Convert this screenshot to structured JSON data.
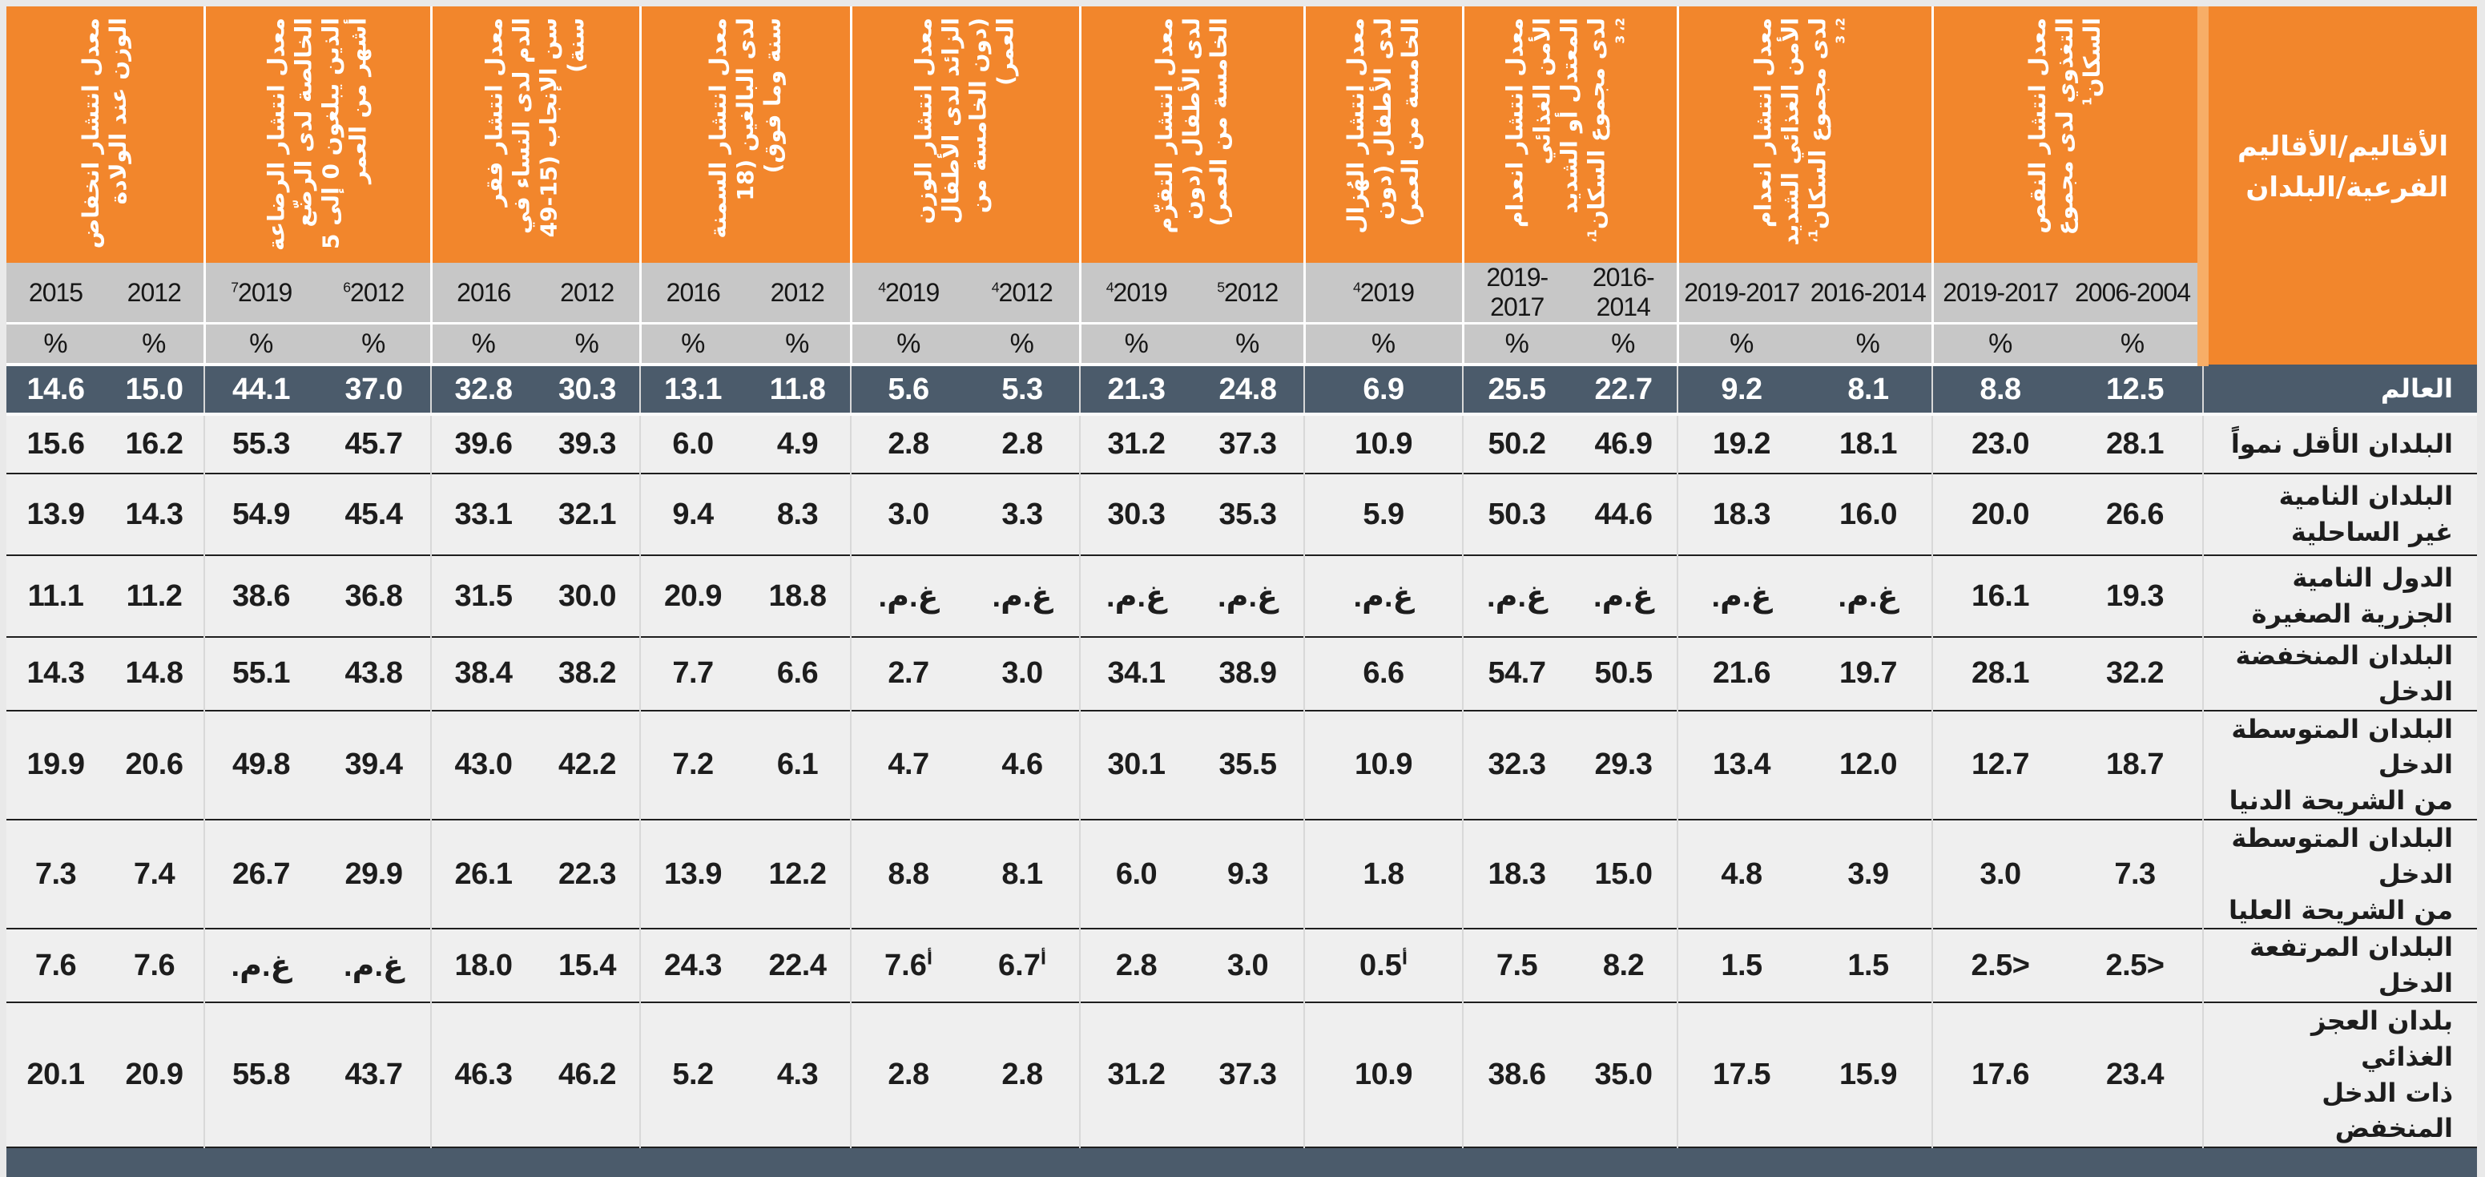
{
  "table": {
    "corner_header": "الأقاليم/الأقاليم\nالفرعية/البلدان",
    "unit": "%",
    "na": "‏غ.م.‏",
    "colors": {
      "header_orange": "#F2862C",
      "corner_gap_orange": "#F7AE67",
      "year_band_gray": "#C7C7C7",
      "world_row_dark": "#4B5B6B",
      "row_background": "#EFEFEF",
      "row_rule": "#1E1E1E"
    },
    "groups": [
      {
        "title": "معدل انتشار انخفاض الوزن عند الولادة",
        "years": [
          "2015",
          "2012"
        ]
      },
      {
        "title": "معدل انتشار الرضاعة الخالصة لدى الرضّع الذين يبلغون 0 إلى 5 أشهر من العمر",
        "years": [
          "⟦7⟧2019",
          "⟦6⟧2012"
        ]
      },
      {
        "title": "معدل انتشار فقر الدم لدى النساء في سن الإنجاب (15-49 سنة)",
        "years": [
          "2016",
          "2012"
        ]
      },
      {
        "title": "معدل انتشار السمنة لدى البالغين (18 سنة وما فوق)",
        "years": [
          "2016",
          "2012"
        ]
      },
      {
        "title": "معدل انتشار الوزن الزائد لدى الأطفال (دون الخامسة من العمر)",
        "years": [
          "⟦4⟧2019",
          "⟦4⟧2012"
        ]
      },
      {
        "title": "معدل انتشار التقزّم لدى الأطفال (دون الخامسة من العمر)",
        "years": [
          "⟦4⟧2019",
          "⟦5⟧2012"
        ]
      },
      {
        "title": "معدل انتشار الهُزال لدى الأطفال (دون الخامسة من العمر)",
        "years": [
          "⟦4⟧2019"
        ]
      },
      {
        "title": "معدل انتشار انعدام الأمن الغذائي المعتدل أو الشديد لدى مجموع السكان⟦1، 2، 3⟧",
        "years": [
          "2019-2017",
          "2016-2014"
        ]
      },
      {
        "title": "معدل انتشار انعدام الأمن الغذائي الشديد لدى مجموع السكان⟦1، 2، 3⟧",
        "years": [
          "2019-2017",
          "2016-2014"
        ]
      },
      {
        "title": "معدل انتشار النقص التغذوي لدى مجموع السكان⟦1⟧",
        "years": [
          "2019-2017",
          "2006-2004"
        ]
      }
    ],
    "rows": [
      {
        "label": "العالم",
        "values": [
          "14.6",
          "15.0",
          "44.1",
          "37.0",
          "32.8",
          "30.3",
          "13.1",
          "11.8",
          "5.6",
          "5.3",
          "21.3",
          "24.8",
          "6.9",
          "25.5",
          "22.7",
          "9.2",
          "8.1",
          "8.8",
          "12.5"
        ]
      },
      {
        "label": "البلدان الأقل نمواً",
        "values": [
          "15.6",
          "16.2",
          "55.3",
          "45.7",
          "39.6",
          "39.3",
          "6.0",
          "4.9",
          "2.8",
          "2.8",
          "31.2",
          "37.3",
          "10.9",
          "50.2",
          "46.9",
          "19.2",
          "18.1",
          "23.0",
          "28.1"
        ]
      },
      {
        "label": "البلدان النامية\nغير الساحلية",
        "values": [
          "13.9",
          "14.3",
          "54.9",
          "45.4",
          "33.1",
          "32.1",
          "9.4",
          "8.3",
          "3.0",
          "3.3",
          "30.3",
          "35.3",
          "5.9",
          "50.3",
          "44.6",
          "18.3",
          "16.0",
          "20.0",
          "26.6"
        ]
      },
      {
        "label": "الدول النامية\nالجزرية الصغيرة",
        "values": [
          "11.1",
          "11.2",
          "38.6",
          "36.8",
          "31.5",
          "30.0",
          "20.9",
          "18.8",
          "‏غ.م.‏",
          "‏غ.م.‏",
          "‏غ.م.‏",
          "‏غ.م.‏",
          "‏غ.م.‏",
          "‏غ.م.‏",
          "‏غ.م.‏",
          "‏غ.م.‏",
          "‏غ.م.‏",
          "16.1",
          "19.3"
        ]
      },
      {
        "label": "البلدان المنخفضة الدخل",
        "values": [
          "14.3",
          "14.8",
          "55.1",
          "43.8",
          "38.4",
          "38.2",
          "7.7",
          "6.6",
          "2.7",
          "3.0",
          "34.1",
          "38.9",
          "6.6",
          "54.7",
          "50.5",
          "21.6",
          "19.7",
          "28.1",
          "32.2"
        ]
      },
      {
        "label": "البلدان المتوسطة الدخل\nمن الشريحة الدنيا",
        "values": [
          "19.9",
          "20.6",
          "49.8",
          "39.4",
          "43.0",
          "42.2",
          "7.2",
          "6.1",
          "4.7",
          "4.6",
          "30.1",
          "35.5",
          "10.9",
          "32.3",
          "29.3",
          "13.4",
          "12.0",
          "12.7",
          "18.7"
        ]
      },
      {
        "label": "البلدان المتوسطة الدخل\nمن الشريحة العليا",
        "values": [
          "7.3",
          "7.4",
          "26.7",
          "29.9",
          "26.1",
          "22.3",
          "13.9",
          "12.2",
          "8.8",
          "8.1",
          "6.0",
          "9.3",
          "1.8",
          "18.3",
          "15.0",
          "4.8",
          "3.9",
          "3.0",
          "7.3"
        ]
      },
      {
        "label": "البلدان المرتفعة الدخل",
        "values": [
          "7.6",
          "7.6",
          "‏غ.م.‏",
          "‏غ.م.‏",
          "18.0",
          "15.4",
          "24.3",
          "22.4",
          "⟦أ⟧7.6",
          "⟦أ⟧6.7",
          "2.8",
          "3.0",
          "⟦أ⟧0.5",
          "7.5",
          "8.2",
          "1.5",
          "1.5",
          "2.5>",
          "2.5>"
        ]
      },
      {
        "label": "بلدان العجز الغذائي\nذات الدخل المنخفض",
        "values": [
          "20.1",
          "20.9",
          "55.8",
          "43.7",
          "46.3",
          "46.2",
          "5.2",
          "4.3",
          "2.8",
          "2.8",
          "31.2",
          "37.3",
          "10.9",
          "38.6",
          "35.0",
          "17.5",
          "15.9",
          "17.6",
          "23.4"
        ]
      }
    ]
  }
}
